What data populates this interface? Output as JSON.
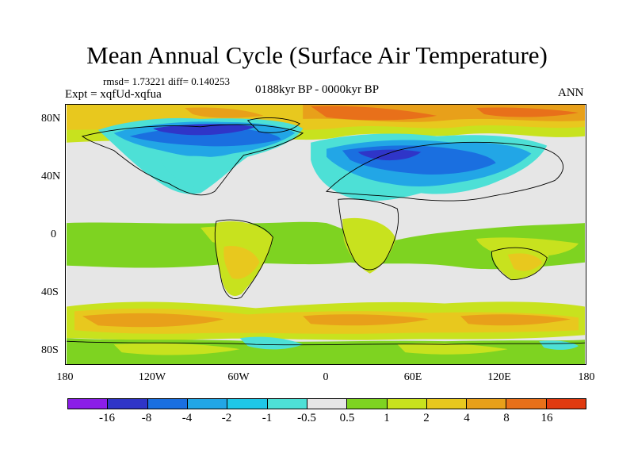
{
  "title": "Mean Annual Cycle (Surface Air Temperature)",
  "stats_text": "rmsd= 1.73221 diff= 0.140253",
  "experiment": "Expt = xqfUd-xqfua",
  "period": "0188kyr BP - 0000kyr BP",
  "season": "ANN",
  "map": {
    "lat_labels": [
      "80N",
      "40N",
      "0",
      "40S",
      "80S"
    ],
    "lon_labels": [
      "180",
      "120W",
      "60W",
      "0",
      "60E",
      "120E",
      "180"
    ]
  },
  "colorbar": {
    "colors": [
      "#8b1ee8",
      "#2f35c8",
      "#1a6fe0",
      "#22a6e6",
      "#1fc7e8",
      "#4de0d6",
      "#e6e6e6",
      "#7ed321",
      "#c8e21e",
      "#e8c81e",
      "#e8a01a",
      "#e8701a",
      "#e03a10"
    ],
    "labels": [
      "-16",
      "-8",
      "-4",
      "-2",
      "-1",
      "-0.5",
      "0.5",
      "1",
      "2",
      "4",
      "8",
      "16"
    ]
  },
  "colors": {
    "neutral": "#e6e6e6",
    "ocean_warm": "#7ed321",
    "mild_warm": "#c8e21e",
    "warm": "#e8c81e",
    "hot": "#e8a01a",
    "very_hot": "#e8701a",
    "cool": "#4de0d6",
    "cold": "#22a6e6",
    "very_cold": "#1a6fe0",
    "coldest": "#2f35c8"
  }
}
